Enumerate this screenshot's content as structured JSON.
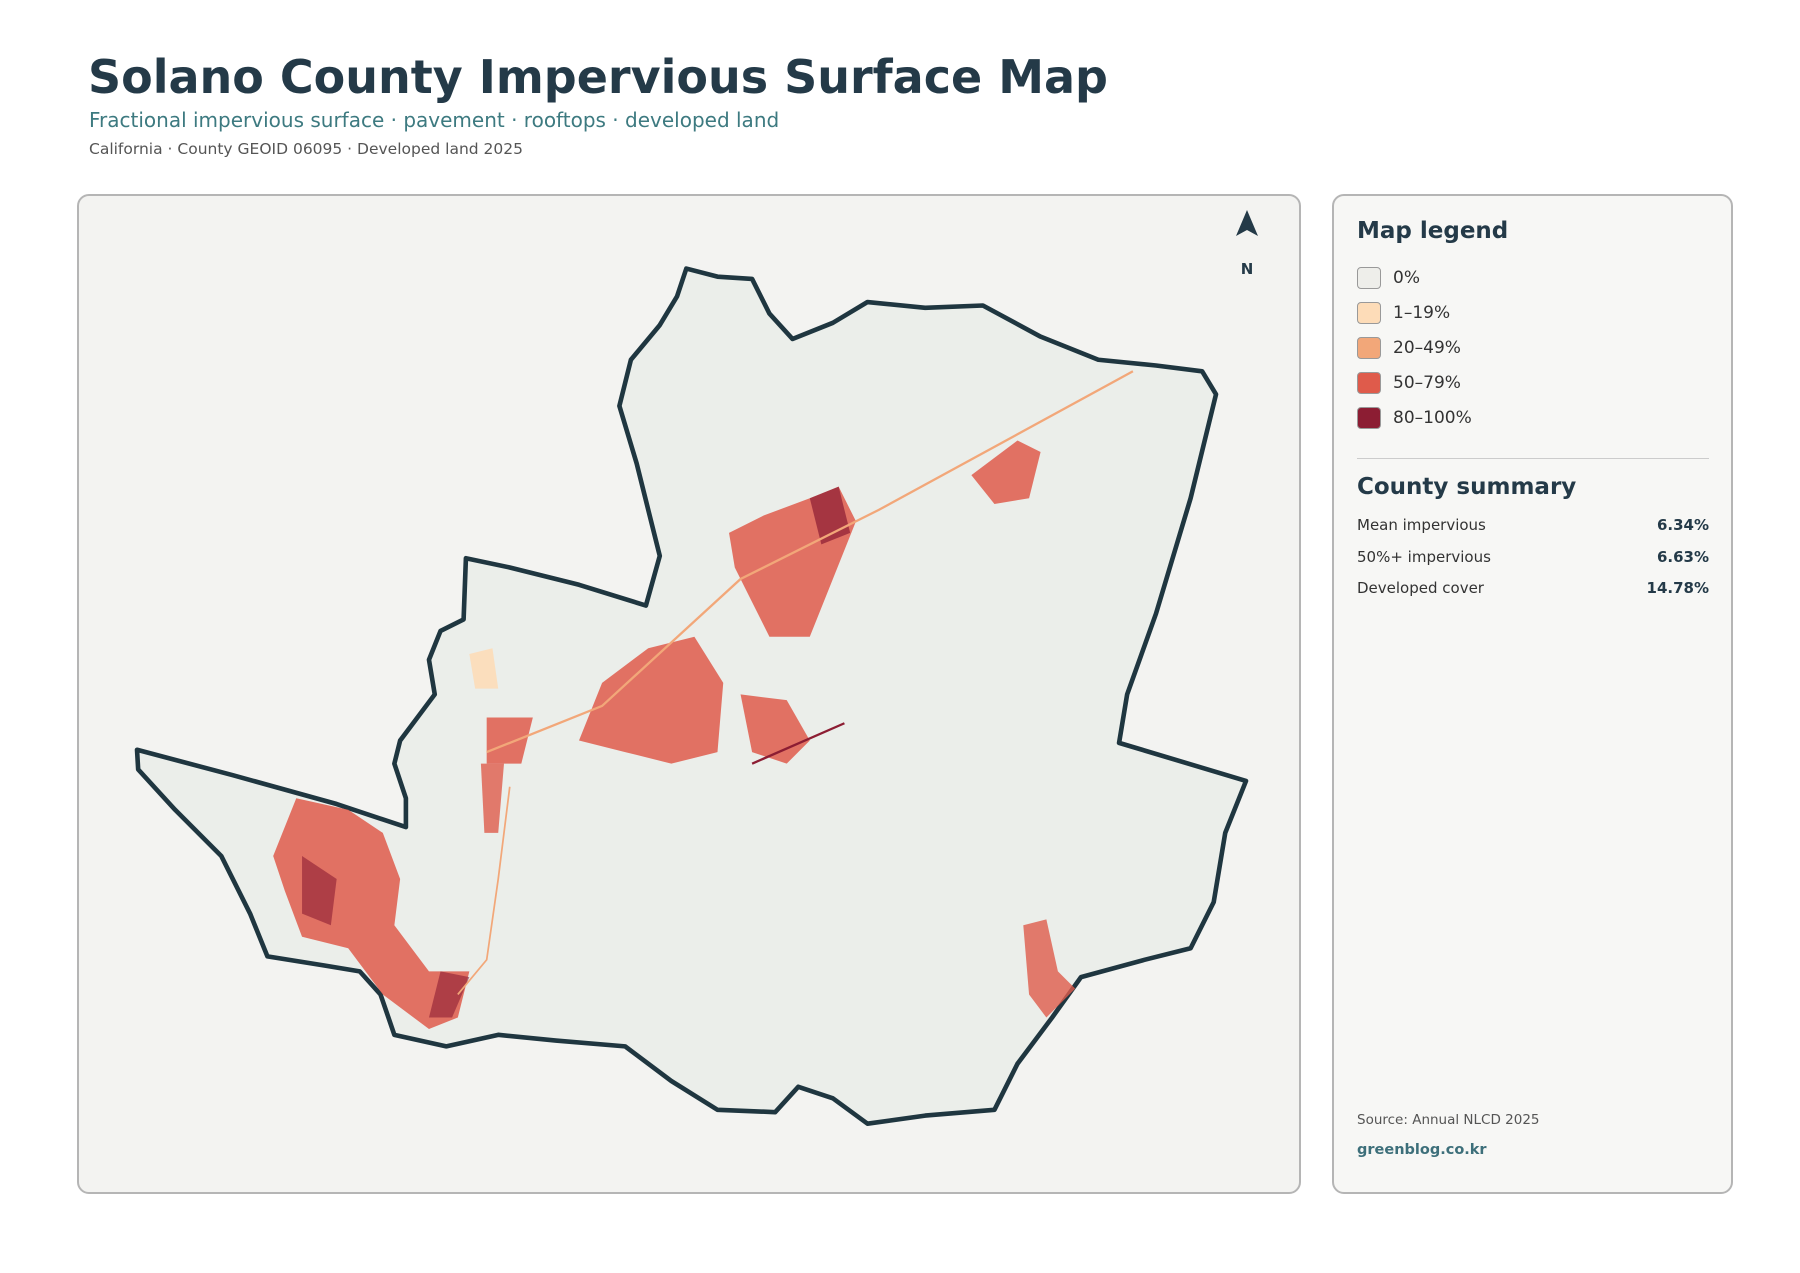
{
  "header": {
    "title": "Solano County Impervious Surface Map",
    "subtitle": "Fractional impervious surface · pavement · rooftops · developed land",
    "meta": "California · County GEOID 06095 · Developed land 2025"
  },
  "map": {
    "north_label": "N"
  },
  "legend": {
    "title": "Map legend",
    "items": [
      {
        "label": "0%",
        "color": "#eeeeea"
      },
      {
        "label": "1–19%",
        "color": "#fddcb8"
      },
      {
        "label": "20–49%",
        "color": "#f2a779"
      },
      {
        "label": "50–79%",
        "color": "#df5b4b"
      },
      {
        "label": "80–100%",
        "color": "#8c1d33"
      }
    ]
  },
  "summary": {
    "title": "County summary",
    "rows": [
      {
        "label": "Mean impervious",
        "value": "6.34%"
      },
      {
        "label": "50%+ impervious",
        "value": "6.63%"
      },
      {
        "label": "Developed cover",
        "value": "14.78%"
      }
    ]
  },
  "footer": {
    "source": "Source: Annual NLCD 2025",
    "credit": "greenblog.co.kr"
  }
}
